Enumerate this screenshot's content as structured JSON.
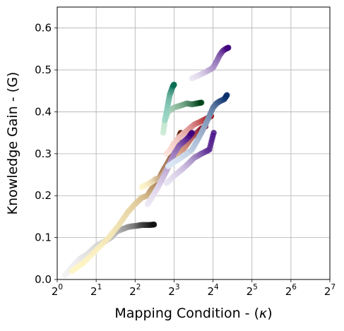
{
  "chart_data": {
    "type": "scatter",
    "title": "",
    "xlabel_text": "Mapping Condition - (",
    "xlabel_symbol": "κ",
    "xlabel_end": ")",
    "ylabel": "Knowledge Gain - (G)",
    "x_scale": "log2",
    "xlim": [
      1,
      128
    ],
    "ylim": [
      0.0,
      0.65
    ],
    "grid": true,
    "x_ticks": [
      {
        "base": "2",
        "exp": "0",
        "value": 1
      },
      {
        "base": "2",
        "exp": "1",
        "value": 2
      },
      {
        "base": "2",
        "exp": "2",
        "value": 4
      },
      {
        "base": "2",
        "exp": "3",
        "value": 8
      },
      {
        "base": "2",
        "exp": "4",
        "value": 16
      },
      {
        "base": "2",
        "exp": "5",
        "value": 32
      },
      {
        "base": "2",
        "exp": "6",
        "value": 64
      },
      {
        "base": "2",
        "exp": "7",
        "value": 128
      }
    ],
    "y_ticks": [
      {
        "label": "0.0",
        "value": 0.0
      },
      {
        "label": "0.1",
        "value": 0.1
      },
      {
        "label": "0.2",
        "value": 0.2
      },
      {
        "label": "0.3",
        "value": 0.3
      },
      {
        "label": "0.4",
        "value": 0.4
      },
      {
        "label": "0.5",
        "value": 0.5
      },
      {
        "label": "0.6",
        "value": 0.6
      }
    ],
    "series": [
      {
        "colormap": "Greys",
        "from": "#f2f2f2",
        "to": "#111111",
        "points": [
          [
            1.15,
            0.01
          ],
          [
            1.3,
            0.03
          ],
          [
            1.5,
            0.05
          ],
          [
            1.7,
            0.06
          ],
          [
            2.0,
            0.08
          ],
          [
            2.3,
            0.09
          ],
          [
            2.6,
            0.1
          ],
          [
            2.9,
            0.115
          ],
          [
            3.2,
            0.12
          ],
          [
            3.5,
            0.125
          ],
          [
            3.8,
            0.127
          ],
          [
            4.1,
            0.128
          ],
          [
            4.3,
            0.129
          ],
          [
            4.5,
            0.13
          ],
          [
            4.8,
            0.13
          ],
          [
            5.2,
            0.13
          ],
          [
            5.6,
            0.131
          ]
        ]
      },
      {
        "colormap": "YlOrBr",
        "from": "#fff5c4",
        "to": "#6b2703",
        "points": [
          [
            1.3,
            0.02
          ],
          [
            1.6,
            0.04
          ],
          [
            2.0,
            0.07
          ],
          [
            2.5,
            0.1
          ],
          [
            3.0,
            0.13
          ],
          [
            3.5,
            0.16
          ],
          [
            4.0,
            0.18
          ],
          [
            4.5,
            0.195
          ],
          [
            5.0,
            0.2
          ],
          [
            5.2,
            0.21
          ],
          [
            5.5,
            0.22
          ],
          [
            5.8,
            0.23
          ],
          [
            6.1,
            0.24
          ],
          [
            6.6,
            0.26
          ],
          [
            7.2,
            0.28
          ],
          [
            7.8,
            0.3
          ],
          [
            8.5,
            0.31
          ],
          [
            9.2,
            0.32
          ]
        ]
      },
      {
        "colormap": "YlOrBr-2",
        "from": "#fff7d0",
        "to": "#5c1500",
        "points": [
          [
            4.5,
            0.22
          ],
          [
            4.8,
            0.225
          ],
          [
            5.2,
            0.23
          ],
          [
            5.5,
            0.235
          ],
          [
            5.8,
            0.24
          ],
          [
            6.1,
            0.24
          ],
          [
            6.5,
            0.25
          ],
          [
            7.0,
            0.27
          ],
          [
            7.5,
            0.29
          ],
          [
            8.0,
            0.31
          ],
          [
            8.5,
            0.33
          ],
          [
            9.0,
            0.35
          ]
        ]
      },
      {
        "colormap": "YlOrRd",
        "from": "#ffe8b0",
        "to": "#800026",
        "points": [
          [
            7.0,
            0.26
          ],
          [
            7.3,
            0.27
          ],
          [
            7.6,
            0.28
          ],
          [
            8.0,
            0.29
          ],
          [
            8.6,
            0.3
          ],
          [
            9.4,
            0.31
          ],
          [
            10.2,
            0.325
          ],
          [
            11.0,
            0.34
          ],
          [
            12.0,
            0.35
          ],
          [
            13.0,
            0.36
          ],
          [
            14.0,
            0.365
          ]
        ]
      },
      {
        "colormap": "Reds",
        "from": "#fde3dc",
        "to": "#a50f15",
        "points": [
          [
            7.0,
            0.3
          ],
          [
            7.5,
            0.31
          ],
          [
            8.0,
            0.325
          ],
          [
            8.8,
            0.34
          ],
          [
            9.6,
            0.35
          ],
          [
            10.5,
            0.36
          ],
          [
            11.5,
            0.37
          ],
          [
            12.5,
            0.375
          ],
          [
            13.5,
            0.38
          ],
          [
            14.5,
            0.385
          ],
          [
            15.5,
            0.39
          ]
        ]
      },
      {
        "colormap": "Purples",
        "from": "#ece6f3",
        "to": "#3f007d",
        "points": [
          [
            5.0,
            0.18
          ],
          [
            5.5,
            0.2
          ],
          [
            6.0,
            0.22
          ],
          [
            6.5,
            0.24
          ],
          [
            7.0,
            0.26
          ],
          [
            7.5,
            0.28
          ],
          [
            8.0,
            0.3
          ],
          [
            8.8,
            0.32
          ],
          [
            9.6,
            0.33
          ],
          [
            10.4,
            0.34
          ],
          [
            11.0,
            0.35
          ]
        ]
      },
      {
        "colormap": "Blues",
        "from": "#dde8f5",
        "to": "#08306b",
        "points": [
          [
            7.2,
            0.27
          ],
          [
            8.0,
            0.28
          ],
          [
            9.0,
            0.29
          ],
          [
            10.0,
            0.3
          ],
          [
            11.0,
            0.31
          ],
          [
            12.0,
            0.33
          ],
          [
            13.0,
            0.35
          ],
          [
            14.0,
            0.37
          ],
          [
            15.0,
            0.39
          ],
          [
            16.0,
            0.41
          ],
          [
            17.0,
            0.42
          ],
          [
            18.0,
            0.425
          ],
          [
            19.5,
            0.43
          ],
          [
            20.5,
            0.44
          ]
        ]
      },
      {
        "colormap": "Greens",
        "from": "#c9ead4",
        "to": "#00441b",
        "points": [
          [
            6.6,
            0.35
          ],
          [
            6.8,
            0.38
          ],
          [
            7.2,
            0.4
          ],
          [
            8.0,
            0.41
          ],
          [
            9.0,
            0.415
          ],
          [
            10.0,
            0.42
          ],
          [
            11.0,
            0.418
          ],
          [
            12.0,
            0.42
          ],
          [
            13.0,
            0.422
          ]
        ]
      },
      {
        "colormap": "BuGn",
        "from": "#9ed8c8",
        "to": "#0b6b55",
        "points": [
          [
            6.8,
            0.38
          ],
          [
            7.0,
            0.4
          ],
          [
            7.2,
            0.42
          ],
          [
            7.4,
            0.44
          ],
          [
            7.6,
            0.45
          ],
          [
            7.8,
            0.46
          ],
          [
            8.0,
            0.465
          ]
        ]
      },
      {
        "colormap": "Purples-high",
        "from": "#ebe7f3",
        "to": "#3f007d",
        "points": [
          [
            11.0,
            0.48
          ],
          [
            12.0,
            0.485
          ],
          [
            13.0,
            0.49
          ],
          [
            14.0,
            0.495
          ],
          [
            15.0,
            0.5
          ],
          [
            16.0,
            0.505
          ],
          [
            17.0,
            0.52
          ],
          [
            18.0,
            0.535
          ],
          [
            19.0,
            0.545
          ],
          [
            20.0,
            0.55
          ],
          [
            21.0,
            0.553
          ]
        ]
      },
      {
        "colormap": "Purples-mid",
        "from": "#e9e5f2",
        "to": "#4a1486",
        "points": [
          [
            7.0,
            0.23
          ],
          [
            7.6,
            0.24
          ],
          [
            8.2,
            0.25
          ],
          [
            9.0,
            0.26
          ],
          [
            9.8,
            0.27
          ],
          [
            10.6,
            0.28
          ],
          [
            11.4,
            0.29
          ],
          [
            12.2,
            0.295
          ],
          [
            13.0,
            0.3
          ],
          [
            14.0,
            0.305
          ],
          [
            15.0,
            0.31
          ],
          [
            16.2,
            0.35
          ]
        ]
      }
    ]
  }
}
